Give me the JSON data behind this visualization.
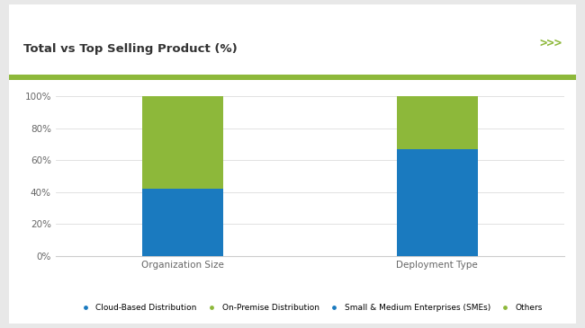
{
  "title": "Total vs Top Selling Product (%)",
  "categories": [
    "Organization Size",
    "Deployment Type"
  ],
  "blue_vals": [
    42,
    67
  ],
  "green_vals": [
    58,
    33
  ],
  "blue_color": "#1a7abf",
  "green_color": "#8db83a",
  "legend_labels": [
    "Cloud-Based Distribution",
    "On-Premise Distribution",
    "Small & Medium Enterprises (SMEs)",
    "Others"
  ],
  "legend_colors": [
    "#1a7abf",
    "#8db83a",
    "#1a7abf",
    "#8db83a"
  ],
  "yticks": [
    0,
    20,
    40,
    60,
    80,
    100
  ],
  "ytick_labels": [
    "0%",
    "20%",
    "40%",
    "60%",
    "80%",
    "100%"
  ],
  "bg_color": "#e8e8e8",
  "panel_color": "#ffffff",
  "accent_line_color": "#8db83a",
  "arrow_color": "#8db83a",
  "title_color": "#333333",
  "bar_width": 0.32,
  "title_fontsize": 9.5,
  "tick_fontsize": 7.5,
  "legend_fontsize": 6.5
}
